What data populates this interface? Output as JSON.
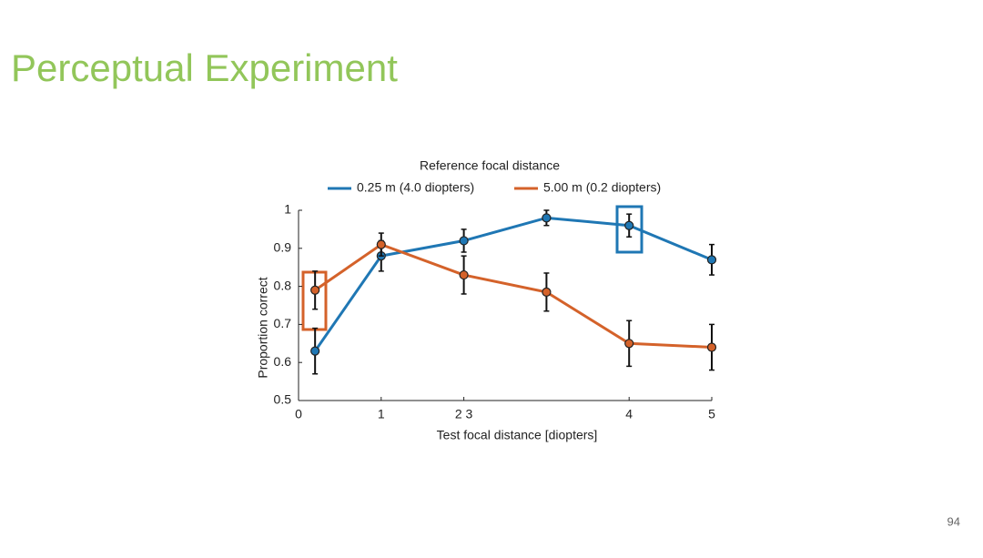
{
  "slide": {
    "title": "Perceptual Experiment",
    "page_number": "94"
  },
  "chart_data": {
    "type": "line",
    "legend_title": "Reference focal distance",
    "xlabel": "Test focal distance [diopters]",
    "ylabel": "Proportion correct",
    "x": [
      0.2,
      1,
      2,
      3,
      4,
      5
    ],
    "series": [
      {
        "name": "0.25 m (4.0 diopters)",
        "color": "#1f77b4",
        "values": [
          0.63,
          0.88,
          0.92,
          0.98,
          0.96,
          0.87
        ],
        "errors": [
          0.06,
          0.04,
          0.03,
          0.02,
          0.03,
          0.04
        ]
      },
      {
        "name": "5.00 m (0.2 diopters)",
        "color": "#d4622a",
        "values": [
          0.79,
          0.91,
          0.83,
          0.785,
          0.65,
          0.64
        ],
        "errors": [
          0.05,
          0.03,
          0.05,
          0.05,
          0.06,
          0.06
        ]
      }
    ],
    "xlim": [
      0,
      5
    ],
    "xticks": [
      0,
      1,
      {
        "value": 2,
        "label": "2 3"
      },
      4,
      5
    ],
    "ylim": [
      0.5,
      1
    ],
    "yticks": [
      0.5,
      0.6,
      0.7,
      0.8,
      0.9,
      1
    ],
    "legend": "top"
  }
}
